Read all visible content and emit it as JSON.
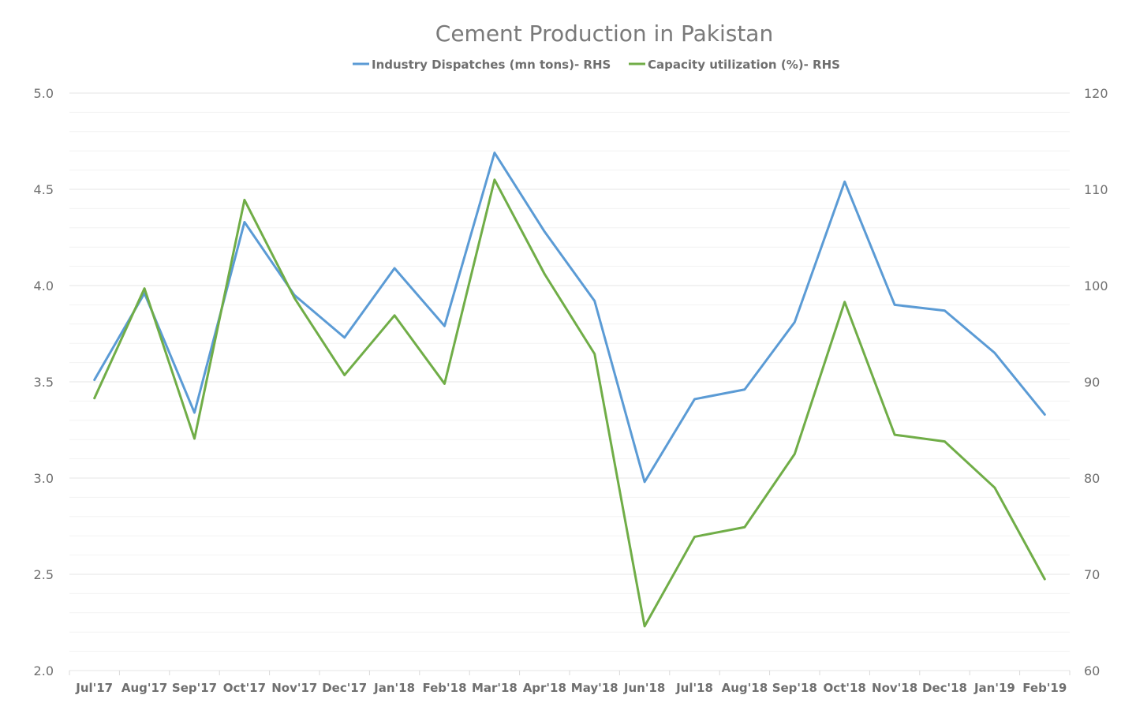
{
  "chart_data": {
    "type": "line",
    "title": "Cement Production in Pakistan",
    "categories": [
      "Jul'17",
      "Aug'17",
      "Sep'17",
      "Oct'17",
      "Nov'17",
      "Dec'17",
      "Jan'18",
      "Feb'18",
      "Mar'18",
      "Apr'18",
      "May'18",
      "Jun'18",
      "Jul'18",
      "Aug'18",
      "Sep'18",
      "Oct'18",
      "Nov'18",
      "Dec'18",
      "Jan'19",
      "Feb'19"
    ],
    "left_axis": {
      "ylim": [
        2.0,
        5.0
      ],
      "ticks": [
        "2.0",
        "2.5",
        "3.0",
        "3.5",
        "4.0",
        "4.5",
        "5.0"
      ]
    },
    "right_axis": {
      "ylim": [
        60,
        120
      ],
      "ticks": [
        "60",
        "70",
        "80",
        "90",
        "100",
        "110",
        "120"
      ]
    },
    "grid": true,
    "legend_position": "top",
    "series": [
      {
        "name": "Industry Dispatches (mn tons)- RHS",
        "axis": "left",
        "color": "#5b9bd5",
        "values": [
          3.51,
          3.96,
          3.34,
          4.33,
          3.95,
          3.73,
          4.09,
          3.79,
          4.69,
          4.28,
          3.92,
          2.98,
          3.41,
          3.46,
          3.81,
          4.54,
          3.9,
          3.87,
          3.65,
          3.33
        ]
      },
      {
        "name": "Capacity utilization (%)- RHS",
        "axis": "right",
        "color": "#70ad47",
        "values": [
          88.3,
          99.7,
          84.1,
          108.9,
          98.7,
          90.7,
          96.9,
          89.8,
          111.0,
          101.2,
          92.9,
          64.6,
          73.9,
          74.9,
          82.5,
          98.3,
          84.5,
          83.8,
          79.0,
          69.5
        ]
      }
    ]
  }
}
